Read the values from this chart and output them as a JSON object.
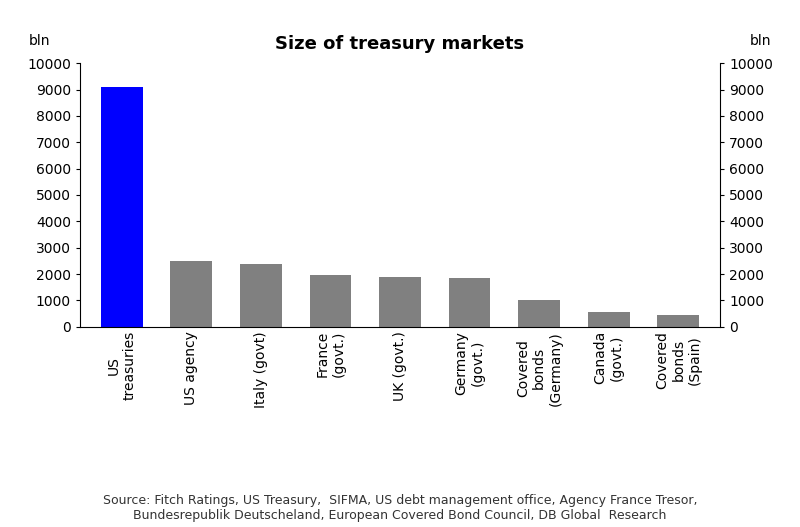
{
  "title": "Size of treasury markets",
  "ylabel_left": "bln",
  "ylabel_right": "bln",
  "categories": [
    "US\ntreasuries",
    "US agency",
    "Italy (govt)",
    "France\n(govt.)",
    "UK (govt.)",
    "Germany\n(govt.)",
    "Covered\nbonds\n(Germany)",
    "Canada\n(govt.)",
    "Covered\nbonds\n(Spain)"
  ],
  "values": [
    9100,
    2500,
    2400,
    1950,
    1900,
    1850,
    1000,
    550,
    450
  ],
  "bar_colors": [
    "#0000ff",
    "#808080",
    "#808080",
    "#808080",
    "#808080",
    "#808080",
    "#808080",
    "#808080",
    "#808080"
  ],
  "ylim": [
    0,
    10000
  ],
  "yticks": [
    0,
    1000,
    2000,
    3000,
    4000,
    5000,
    6000,
    7000,
    8000,
    9000,
    10000
  ],
  "source_text": "Source: Fitch Ratings, US Treasury,  SIFMA, US debt management office, Agency France Tresor,\nBundesrepublik Deutscheland, European Covered Bond Council, DB Global  Research",
  "title_fontsize": 13,
  "tick_fontsize": 10,
  "source_fontsize": 9,
  "background_color": "#ffffff"
}
